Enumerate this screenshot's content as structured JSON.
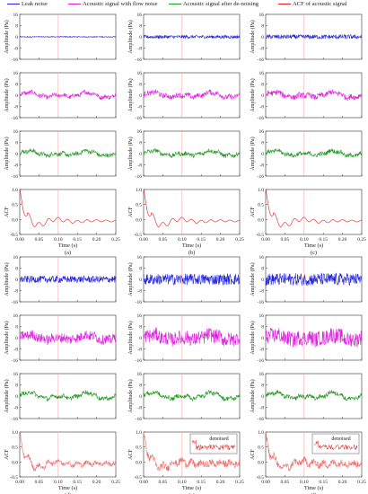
{
  "legend": [
    {
      "label": "Leak noise",
      "color": "#2222dd"
    },
    {
      "label": "Acoustic signal with flow noise",
      "color": "#dd22dd"
    },
    {
      "label": "Acoustic signal after de-noising",
      "color": "#229922"
    },
    {
      "label": "ACF of acoustic signal",
      "color": "#dd2222"
    }
  ],
  "chart_data": {
    "type": "line",
    "description_grid": "2 groups x 3 columns x 4 stacked panels",
    "x": {
      "label": "Time (s)",
      "range": [
        0,
        0.25
      ],
      "ticks": [
        "0.00",
        "0.05",
        "0.10",
        "0.15",
        "0.20",
        "0.25"
      ]
    },
    "amplitude_axis": {
      "label": "Amplitude (Pa)",
      "range": [
        -16,
        16
      ],
      "ticks": [
        "16",
        "8",
        "0",
        "-8",
        "-16"
      ]
    },
    "acf_axis": {
      "label": "ACF",
      "range": [
        -0.5,
        1.0
      ],
      "ticks": [
        "1.0",
        "0.5",
        "0.0",
        "-0.5"
      ]
    },
    "rows": [
      {
        "series": "Leak noise",
        "axis": "amplitude"
      },
      {
        "series": "Acoustic signal with flow noise",
        "axis": "amplitude"
      },
      {
        "series": "Acoustic signal after de-noising",
        "axis": "amplitude"
      },
      {
        "series": "ACF of acoustic signal",
        "axis": "acf"
      }
    ],
    "subplots": [
      {
        "label": "(a)",
        "noise_amp": [
          0.3,
          1.5,
          1.5,
          0.0
        ],
        "inset": ""
      },
      {
        "label": "(b)",
        "noise_amp": [
          1.2,
          1.8,
          1.5,
          0.0
        ],
        "inset": ""
      },
      {
        "label": "(c)",
        "noise_amp": [
          1.6,
          2.0,
          1.5,
          0.0
        ],
        "inset": ""
      },
      {
        "label": "(d)",
        "noise_amp": [
          2.5,
          3.5,
          1.5,
          0.08
        ],
        "inset": ""
      },
      {
        "label": "(e)",
        "noise_amp": [
          4.0,
          5.0,
          1.5,
          0.12
        ],
        "inset": "denoised"
      },
      {
        "label": "(f)",
        "noise_amp": [
          4.5,
          5.5,
          1.5,
          0.12
        ],
        "inset": "denoised"
      }
    ],
    "marker_time": 0.1,
    "grid": false,
    "legend_position": "top"
  }
}
